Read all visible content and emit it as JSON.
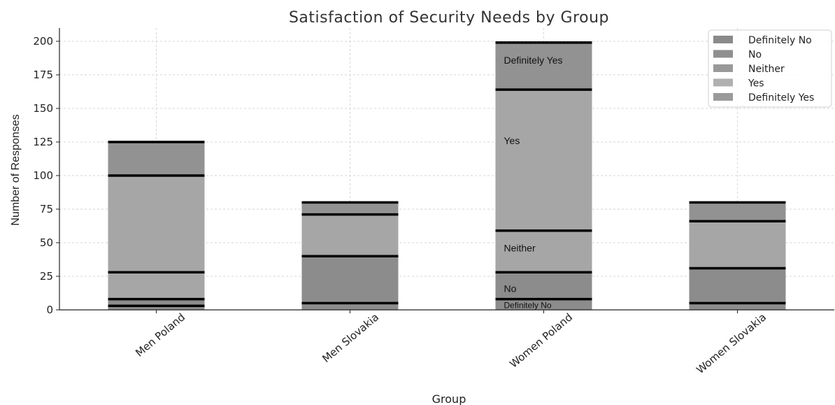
{
  "chart_data": {
    "type": "bar",
    "stacked": true,
    "title": "Satisfaction of Security Needs by Group",
    "xlabel": "Group",
    "ylabel": "Number of Responses",
    "ylim": [
      0,
      210
    ],
    "yticks": [
      0,
      25,
      50,
      75,
      100,
      125,
      150,
      175,
      200
    ],
    "grid": true,
    "legend_position": "top-right",
    "categories": [
      "Men Poland",
      "Men Slovakia",
      "Women Poland",
      "Women Slovakia"
    ],
    "series": [
      {
        "name": "Definitely No",
        "values": [
          3,
          5,
          8,
          5
        ],
        "color": "#8c8c8c"
      },
      {
        "name": "No",
        "values": [
          5,
          35,
          20,
          26
        ],
        "color": "#8c8c8c"
      },
      {
        "name": "Neither",
        "values": [
          20,
          0,
          31,
          0
        ],
        "color": "#a6a6a6"
      },
      {
        "name": "Yes",
        "values": [
          72,
          31,
          105,
          35
        ],
        "color": "#a6a6a6"
      },
      {
        "name": "Definitely Yes",
        "values": [
          25,
          9,
          35,
          14
        ],
        "color": "#929292"
      }
    ],
    "legend_colors": [
      "#8a8a8a",
      "#8f8f8f",
      "#999999",
      "#b0b0b0",
      "#9a9a9a"
    ],
    "annotations": [
      {
        "text": "Definitely Yes",
        "category": "Women Poland",
        "y": 186
      },
      {
        "text": "Yes",
        "category": "Women Poland",
        "y": 126
      },
      {
        "text": "Neither",
        "category": "Women Poland",
        "y": 46
      },
      {
        "text": "No",
        "category": "Women Poland",
        "y": 16
      },
      {
        "text": "Definitely No",
        "category": "Women Poland",
        "y": 4
      }
    ]
  }
}
